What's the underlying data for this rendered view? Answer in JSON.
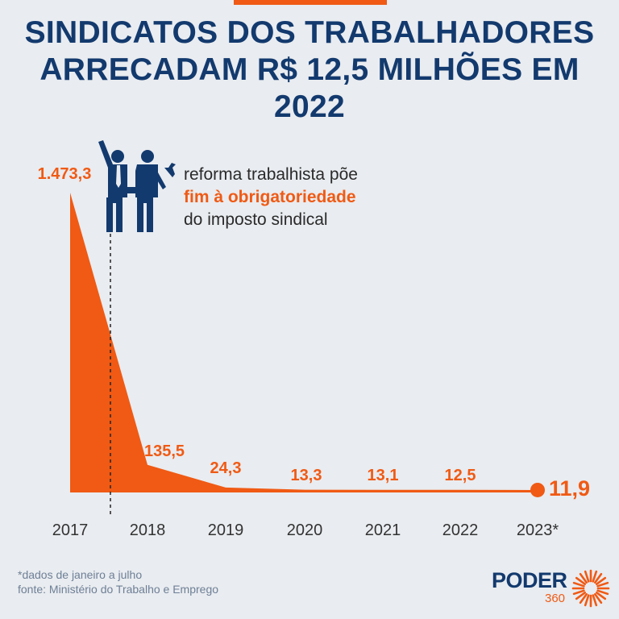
{
  "title": "SINDICATOS DOS TRABALHADORES ARRECADAM R$ 12,5 MILHÕES EM 2022",
  "annotation": {
    "line1": "reforma trabalhista põe",
    "line2": "fim à obrigatoriedade",
    "line3": "do imposto sindical"
  },
  "footnote": {
    "note": "*dados de janeiro a julho",
    "source": "fonte: Ministério do Trabalho e Emprego"
  },
  "logo": {
    "word": "PODER",
    "number": "360"
  },
  "colors": {
    "accent": "#f05a14",
    "navy": "#133a6e",
    "background": "#e9ecf0"
  },
  "chart_data": {
    "type": "area",
    "title": "SINDICATOS DOS TRABALHADORES ARRECADAM R$ 12,5 MILHÕES EM 2022",
    "categories": [
      "2017",
      "2018",
      "2019",
      "2020",
      "2021",
      "2022",
      "2023*"
    ],
    "values": [
      1473.3,
      135.5,
      24.3,
      13.3,
      13.1,
      12.5,
      11.9
    ],
    "labels": [
      "1.473,3",
      "135,5",
      "24,3",
      "13,3",
      "13,1",
      "12,5",
      "11,9"
    ],
    "ylim": [
      0,
      1500
    ],
    "grid": false,
    "legend": "none",
    "event_marker": {
      "between": [
        "2017",
        "2018"
      ],
      "style": "dashed",
      "icon": "workers-icon"
    }
  }
}
